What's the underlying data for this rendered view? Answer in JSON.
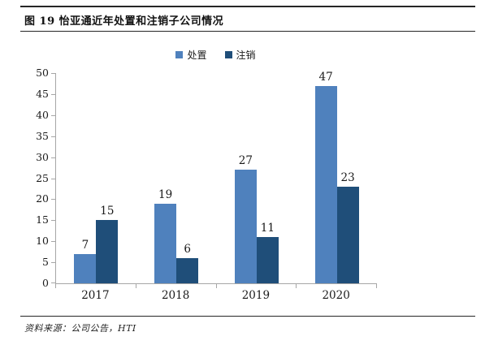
{
  "figure": {
    "title": "图 19 怡亚通近年处置和注销子公司情况",
    "source": "资料来源：公司公告，HTI"
  },
  "chart_data": {
    "type": "bar",
    "title": "图 19 怡亚通近年处置和注销子公司情况",
    "categories": [
      "2017",
      "2018",
      "2019",
      "2020"
    ],
    "series": [
      {
        "name": "处置",
        "color": "#4F81BD",
        "values": [
          7,
          19,
          27,
          47
        ]
      },
      {
        "name": "注销",
        "color": "#1F4E79",
        "values": [
          15,
          6,
          11,
          23
        ]
      }
    ],
    "ylim": [
      0,
      50
    ],
    "yticks": [
      0,
      5,
      10,
      15,
      20,
      25,
      30,
      35,
      40,
      45,
      50
    ],
    "legend_position": "top-center",
    "grid": false,
    "bar_value_labels": true,
    "source": "资料来源：公司公告，HTI"
  }
}
